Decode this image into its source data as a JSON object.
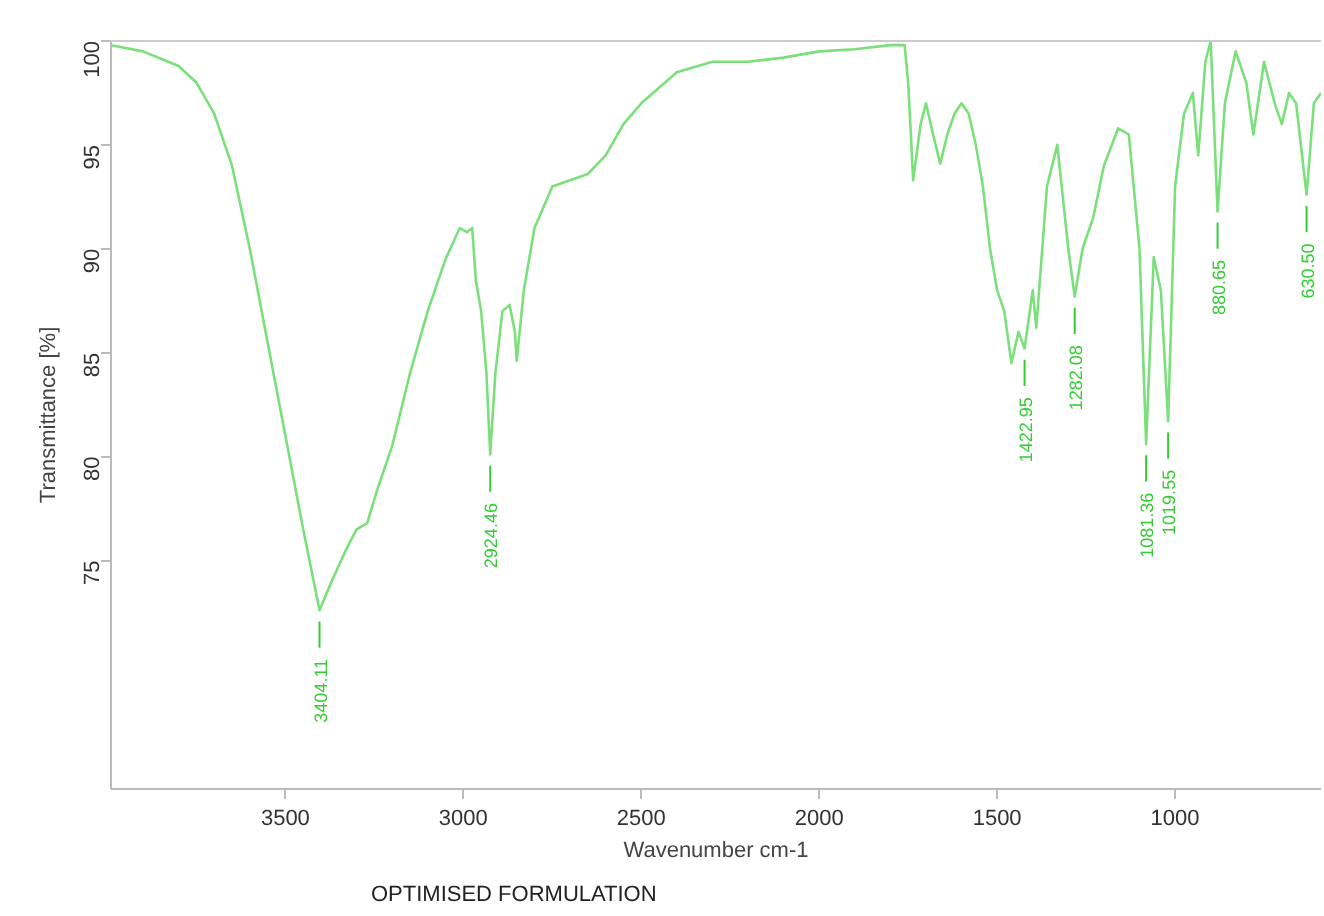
{
  "chart_data": {
    "type": "line",
    "xlabel": "Wavenumber cm-1",
    "ylabel": "Transmittance [%]",
    "xlim": [
      3990,
      590
    ],
    "ylim": [
      64,
      100
    ],
    "xticks": [
      3500,
      3000,
      2500,
      2000,
      1500,
      1000
    ],
    "yticks": [
      75,
      80,
      85,
      90,
      95,
      100
    ],
    "grid": false,
    "x": [
      3990,
      3900,
      3800,
      3750,
      3700,
      3650,
      3600,
      3550,
      3500,
      3450,
      3404.11,
      3370,
      3330,
      3300,
      3270,
      3240,
      3200,
      3150,
      3100,
      3050,
      3010,
      2990,
      2975,
      2965,
      2950,
      2935,
      2924.46,
      2910,
      2890,
      2870,
      2855,
      2850,
      2830,
      2800,
      2750,
      2700,
      2650,
      2600,
      2550,
      2500,
      2400,
      2300,
      2200,
      2100,
      2000,
      1900,
      1800,
      1760,
      1750,
      1736,
      1715,
      1700,
      1680,
      1660,
      1640,
      1620,
      1600,
      1580,
      1560,
      1540,
      1520,
      1500,
      1480,
      1460,
      1440,
      1422.95,
      1400,
      1390,
      1360,
      1331,
      1300,
      1282.08,
      1260,
      1230,
      1200,
      1160,
      1130,
      1100,
      1081.36,
      1060,
      1040,
      1019.55,
      1000,
      975,
      950,
      935,
      915,
      900,
      880.65,
      860,
      830,
      800,
      780,
      750,
      720,
      700,
      680,
      660,
      630.5,
      610,
      590
    ],
    "series": [
      {
        "color": "#7be07b",
        "values": [
          99.8,
          99.5,
          98.8,
          98,
          96.5,
          94,
          90,
          85.5,
          81,
          76.5,
          72.6,
          74,
          75.5,
          76.5,
          76.8,
          78.5,
          80.5,
          84,
          87,
          89.5,
          91,
          90.8,
          91,
          88.5,
          87,
          84,
          80.1,
          84,
          87,
          87.3,
          86,
          84.6,
          88,
          91,
          93,
          93.3,
          93.6,
          94.5,
          96,
          97,
          98.5,
          99,
          99,
          99.2,
          99.5,
          99.6,
          99.8,
          99.8,
          98,
          93.3,
          96,
          97,
          95.5,
          94.1,
          95.5,
          96.5,
          97,
          96.5,
          95,
          93,
          90,
          88,
          87,
          84.5,
          86,
          85.2,
          88,
          86.2,
          93,
          95,
          90,
          87.7,
          90,
          91.5,
          94,
          95.8,
          95.5,
          90,
          80.6,
          89.6,
          88,
          81.7,
          93,
          96.5,
          97.5,
          94.5,
          99,
          100,
          91.8,
          97,
          99.5,
          98,
          95.5,
          99,
          97,
          96,
          97.5,
          97,
          92.6,
          97,
          97.5
        ]
      }
    ],
    "annotations": [
      {
        "text": "3404.11",
        "x": 3404.11,
        "y": 72.6
      },
      {
        "text": "2924.46",
        "x": 2924.46,
        "y": 80.1
      },
      {
        "text": "1422.95",
        "x": 1422.95,
        "y": 85.2
      },
      {
        "text": "1282.08",
        "x": 1282.08,
        "y": 87.7
      },
      {
        "text": "1081.36",
        "x": 1081.36,
        "y": 80.6
      },
      {
        "text": "1019.55",
        "x": 1019.55,
        "y": 81.7
      },
      {
        "text": "880.65",
        "x": 880.65,
        "y": 91.8
      },
      {
        "text": "630.50",
        "x": 630.5,
        "y": 92.6
      },
      "OPTIMISED FORMULATION"
    ]
  }
}
